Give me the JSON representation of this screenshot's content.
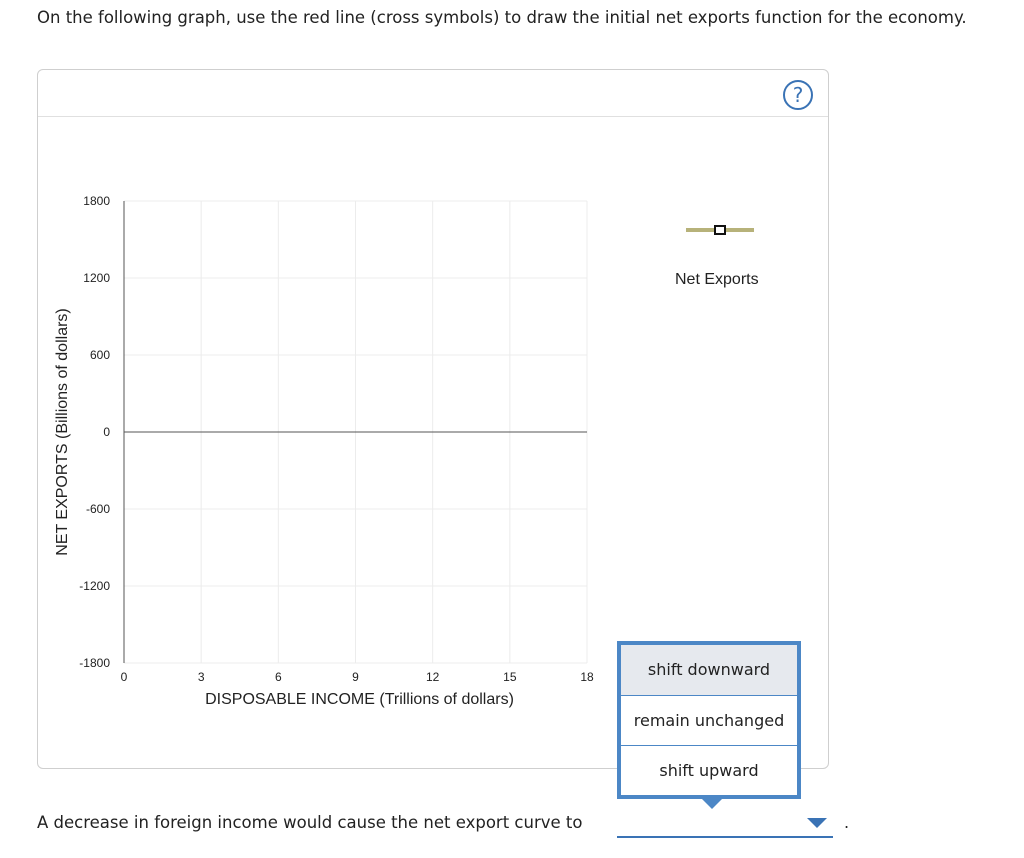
{
  "instruction": "On the following graph, use the red line (cross symbols) to draw the initial net exports function for the economy.",
  "help_symbol": "?",
  "chart_data": {
    "type": "line",
    "xlabel": "DISPOSABLE INCOME (Trillions of dollars)",
    "ylabel": "NET EXPORTS (Billions of dollars)",
    "xlim": [
      0,
      18
    ],
    "ylim": [
      -1800,
      1800
    ],
    "x_ticks": [
      0,
      3,
      6,
      9,
      12,
      15,
      18
    ],
    "y_ticks": [
      1800,
      1200,
      600,
      0,
      -600,
      -1200,
      -1800
    ],
    "grid": true,
    "series": []
  },
  "legend": {
    "label": "Net Exports",
    "line_color": "#b7b27a"
  },
  "question": {
    "text": "A decrease in foreign income would cause the net export curve to",
    "selected": "",
    "trailing": "."
  },
  "dropdown_options": [
    "shift downward",
    "remain unchanged",
    "shift upward"
  ],
  "colors": {
    "accent": "#3a73b5",
    "menu_border": "#4c87c6",
    "grid": "#ececec",
    "axis": "#555555"
  }
}
